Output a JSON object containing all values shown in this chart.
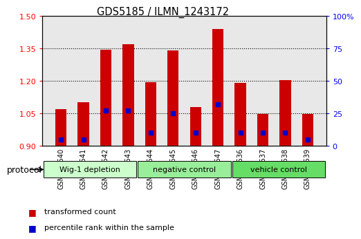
{
  "title": "GDS5185 / ILMN_1243172",
  "samples": [
    "GSM737540",
    "GSM737541",
    "GSM737542",
    "GSM737543",
    "GSM737544",
    "GSM737545",
    "GSM737546",
    "GSM737547",
    "GSM737536",
    "GSM737537",
    "GSM737538",
    "GSM737539"
  ],
  "transformed_counts": [
    1.07,
    1.1,
    1.345,
    1.37,
    1.195,
    1.34,
    1.08,
    1.44,
    1.19,
    1.046,
    1.205,
    1.046
  ],
  "percentile_ranks": [
    5,
    5,
    27,
    27,
    10,
    25,
    10,
    32,
    10,
    10,
    10,
    5
  ],
  "baseline": 0.9,
  "ylim": [
    0.9,
    1.5
  ],
  "y_left_ticks": [
    0.9,
    1.05,
    1.2,
    1.35,
    1.5
  ],
  "y_right_ticks": [
    0,
    25,
    50,
    75,
    100
  ],
  "y_right_labels": [
    "0",
    "25",
    "50",
    "75",
    "100%"
  ],
  "groups": [
    {
      "label": "Wig-1 depletion",
      "start": 0,
      "end": 4,
      "color": "#ccffcc"
    },
    {
      "label": "negative control",
      "start": 4,
      "end": 8,
      "color": "#99ee99"
    },
    {
      "label": "vehicle control",
      "start": 8,
      "end": 12,
      "color": "#66dd66"
    }
  ],
  "bar_color": "#cc0000",
  "percentile_color": "#0000cc",
  "bar_width": 0.5,
  "background_color": "#e8e8e8",
  "protocol_label": "protocol",
  "legend_items": [
    "transformed count",
    "percentile rank within the sample"
  ]
}
